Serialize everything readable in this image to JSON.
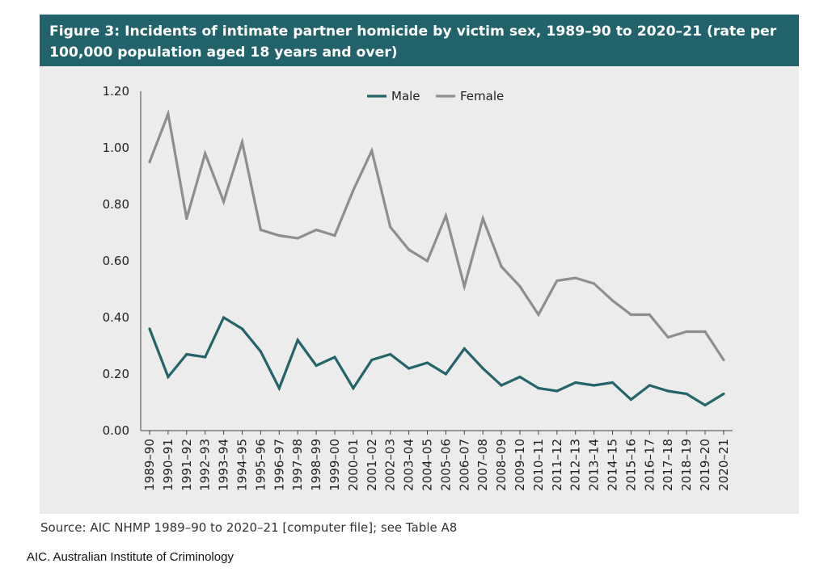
{
  "header": {
    "title": "Figure 3: Incidents of intimate partner homicide by victim sex, 1989–90 to 2020–21 (rate per 100,000 population aged 18 years and over)"
  },
  "colors": {
    "header_bg": "#22626a",
    "panel_bg": "#ececec",
    "male": "#22646a",
    "female": "#8e8e8e"
  },
  "chart_data": {
    "type": "line",
    "title": "Figure 3: Incidents of intimate partner homicide by victim sex, 1989–90 to 2020–21 (rate per 100,000 population aged 18 years and over)",
    "xlabel": "",
    "ylabel": "",
    "ylim": [
      0,
      1.2
    ],
    "yticks": [
      "0.00",
      "0.20",
      "0.40",
      "0.60",
      "0.80",
      "1.00",
      "1.20"
    ],
    "grid": false,
    "legend_position": "top-center",
    "categories": [
      "1989–90",
      "1990–91",
      "1991–92",
      "1992–93",
      "1993–94",
      "1994–95",
      "1995–96",
      "1996–97",
      "1997–98",
      "1998–99",
      "1999–00",
      "2000–01",
      "2001–02",
      "2002–03",
      "2003–04",
      "2004–05",
      "2005–06",
      "2006–07",
      "2007–08",
      "2008–09",
      "2009–10",
      "2010–11",
      "2011–12",
      "2012–13",
      "2013–14",
      "2014–15",
      "2015–16",
      "2016–17",
      "2017–18",
      "2018–19",
      "2019–20",
      "2020–21"
    ],
    "series": [
      {
        "name": "Male",
        "color": "#22646a",
        "values": [
          0.36,
          0.19,
          0.27,
          0.26,
          0.4,
          0.36,
          0.28,
          0.15,
          0.32,
          0.23,
          0.26,
          0.15,
          0.25,
          0.27,
          0.22,
          0.24,
          0.2,
          0.29,
          0.22,
          0.16,
          0.19,
          0.15,
          0.14,
          0.17,
          0.16,
          0.17,
          0.11,
          0.16,
          0.14,
          0.13,
          0.09,
          0.13
        ]
      },
      {
        "name": "Female",
        "color": "#8e8e8e",
        "values": [
          0.95,
          1.12,
          0.75,
          0.98,
          0.81,
          1.02,
          0.71,
          0.69,
          0.68,
          0.71,
          0.69,
          0.85,
          0.99,
          0.72,
          0.64,
          0.6,
          0.76,
          0.51,
          0.75,
          0.58,
          0.51,
          0.41,
          0.53,
          0.54,
          0.52,
          0.46,
          0.41,
          0.41,
          0.33,
          0.35,
          0.35,
          0.25
        ]
      }
    ]
  },
  "footer": {
    "source": "Source: AIC NHMP 1989–90 to 2020–21 [computer file]; see Table A8",
    "credit": "AIC. Australian Institute of Criminology"
  }
}
